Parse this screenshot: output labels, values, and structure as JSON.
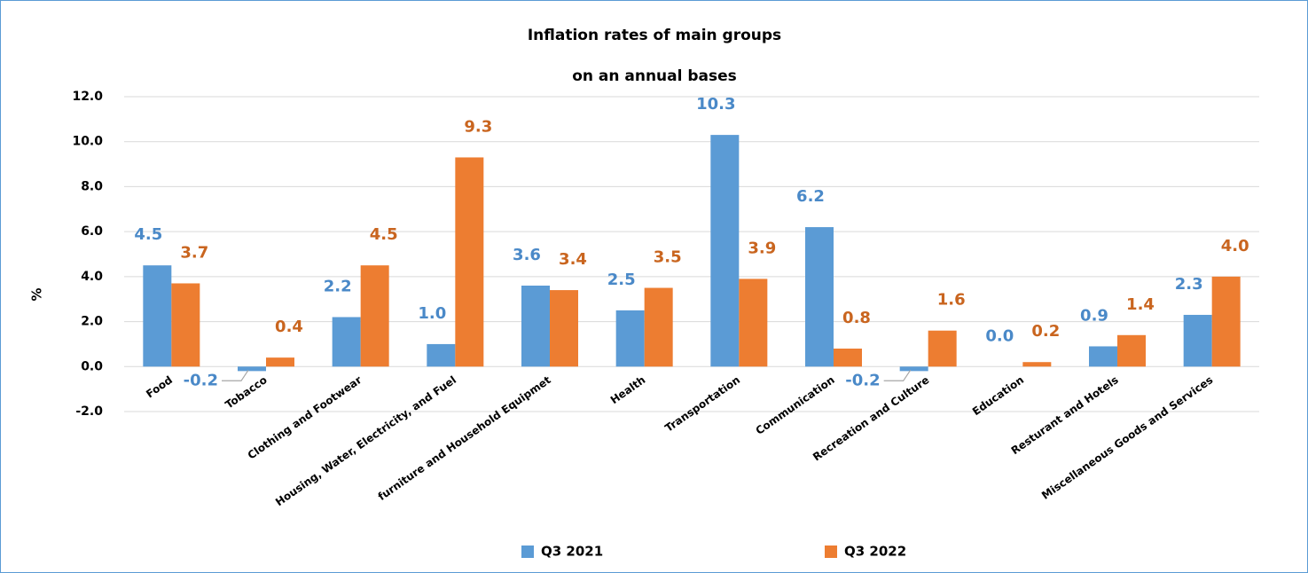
{
  "chart_data": {
    "type": "bar",
    "title": "Inflation rates of main groups",
    "subtitle": "on an annual bases",
    "y_label": "%",
    "categories": [
      "Food",
      "Tobacco",
      "Clothing and Footwear",
      "Housing, Water, Electricity, and Fuel",
      "furniture and Household Equipmet",
      "Health",
      "Transportation",
      "Communication",
      "Recreation and Culture",
      "Education",
      "Resturant and Hotels",
      "Miscellaneous Goods and Services"
    ],
    "series": [
      {
        "name": "Q3 2021",
        "color": "#5b9bd5",
        "label_color": "#4a89c8",
        "values": [
          4.5,
          -0.2,
          2.2,
          1.0,
          3.6,
          2.5,
          10.3,
          6.2,
          -0.2,
          0.0,
          0.9,
          2.3
        ],
        "value_labels": [
          "4.5",
          "-0.2",
          "2.2",
          "1.0",
          "3.6",
          "2.5",
          "10.3",
          "6.2",
          "-0.2",
          "0.0",
          "0.9",
          "2.3"
        ]
      },
      {
        "name": "Q3 2022",
        "color": "#ed7d31",
        "label_color": "#c9651f",
        "values": [
          3.7,
          0.4,
          4.5,
          9.3,
          3.4,
          3.5,
          3.9,
          0.8,
          1.6,
          0.2,
          1.4,
          4.0
        ],
        "value_labels": [
          "3.7",
          "0.4",
          "4.5",
          "9.3",
          "3.4",
          "3.5",
          "3.9",
          "0.8",
          "1.6",
          "0.2",
          "1.4",
          "4.0"
        ]
      }
    ],
    "ylim": [
      -2,
      12
    ],
    "yticks": [
      {
        "value": -2,
        "label": "-2.0"
      },
      {
        "value": 0,
        "label": "0.0"
      },
      {
        "value": 2,
        "label": "2.0"
      },
      {
        "value": 4,
        "label": "4.0"
      },
      {
        "value": 6,
        "label": "6.0"
      },
      {
        "value": 8,
        "label": "8.0"
      },
      {
        "value": 10,
        "label": "10.0"
      },
      {
        "value": 12,
        "label": "12.0"
      }
    ],
    "grid": true
  }
}
